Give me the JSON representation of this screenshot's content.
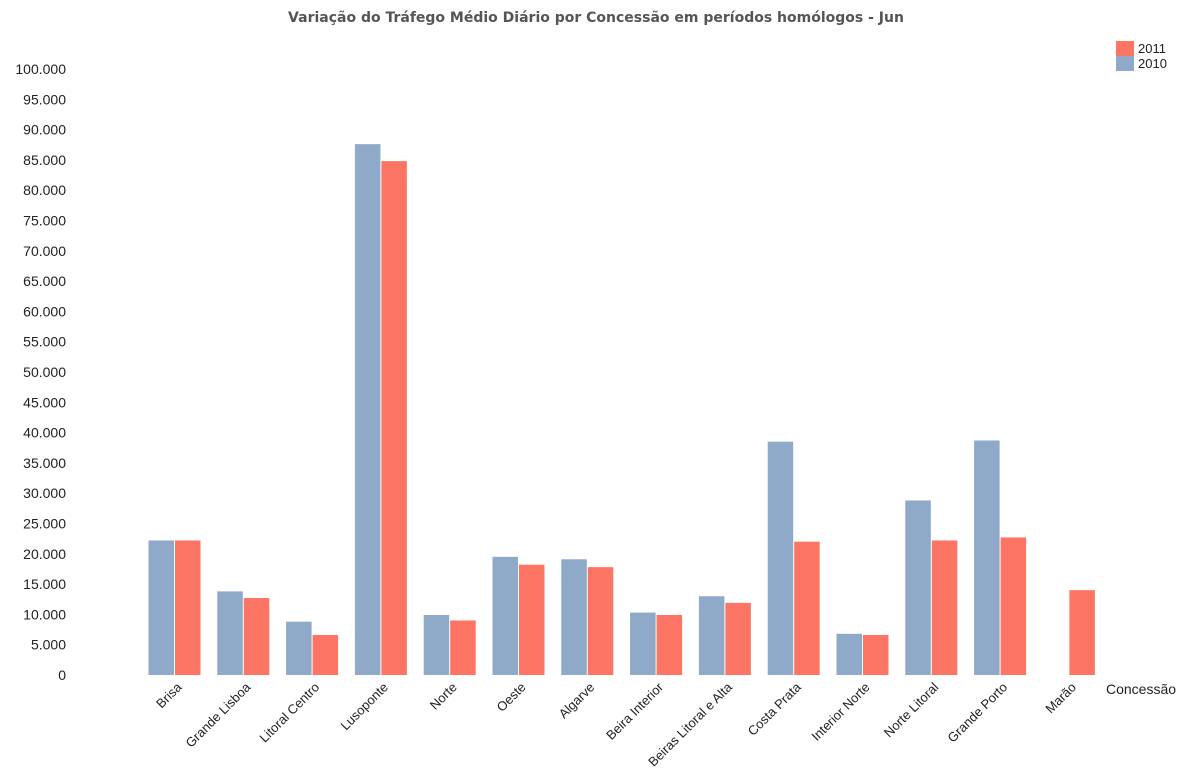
{
  "chart_data": {
    "type": "bar",
    "title": "Variação do Tráfego Médio Diário por Concessão em períodos homólogos - Jun",
    "xlabel": "Concessão",
    "ylabel": "",
    "ylim": [
      0,
      100000
    ],
    "ytick_values": [
      0,
      5000,
      10000,
      15000,
      20000,
      25000,
      30000,
      35000,
      40000,
      45000,
      50000,
      55000,
      60000,
      65000,
      70000,
      75000,
      80000,
      85000,
      90000,
      95000,
      100000
    ],
    "ytick_labels": [
      "0",
      "5.000",
      "10.000",
      "15.000",
      "20.000",
      "25.000",
      "30.000",
      "35.000",
      "40.000",
      "45.000",
      "50.000",
      "55.000",
      "60.000",
      "65.000",
      "70.000",
      "75.000",
      "80.000",
      "85.000",
      "90.000",
      "95.000",
      "100.000"
    ],
    "grid": false,
    "legend_position": "top-right",
    "categories": [
      "Brisa",
      "Grande Lisboa",
      "Litoral Centro",
      "Lusoponte",
      "Norte",
      "Oeste",
      "Algarve",
      "Beira Interior",
      "Beiras Litoral e Alta",
      "Costa Prata",
      "Interior Norte",
      "Norte Litoral",
      "Grande Porto",
      "Marão"
    ],
    "series": [
      {
        "name": "2010",
        "color": "#8FA9C8",
        "values": [
          22200,
          13800,
          8800,
          87600,
          9900,
          19500,
          19100,
          10300,
          13000,
          38500,
          6800,
          28800,
          38700,
          null
        ]
      },
      {
        "name": "2011",
        "color": "#FC7464",
        "values": [
          22200,
          12700,
          6600,
          84800,
          9000,
          18200,
          17800,
          9900,
          11900,
          22000,
          6600,
          22200,
          22700,
          14000
        ]
      }
    ],
    "legend": [
      {
        "label": "2011",
        "color": "#FC7464"
      },
      {
        "label": "2010",
        "color": "#8FA9C8"
      }
    ]
  }
}
